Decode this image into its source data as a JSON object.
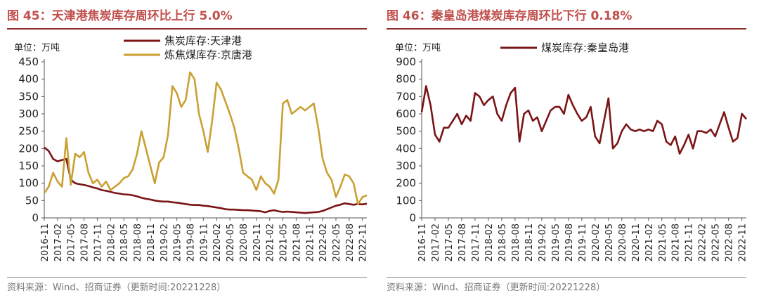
{
  "chart_data": [
    {
      "type": "line",
      "title": "图 45：天津港焦炭库存周环比上行 5.0%",
      "unit_label": "单位：万吨",
      "source": "资料来源：Wind、招商证券（更新时间:20221228）",
      "ylim": [
        0,
        450
      ],
      "yticks": [
        0,
        50,
        100,
        150,
        200,
        250,
        300,
        350,
        400,
        450
      ],
      "x_tick_labels": [
        "2016-11",
        "2017-02",
        "2017-05",
        "2017-08",
        "2017-11",
        "2018-02",
        "2018-05",
        "2018-08",
        "2018-11",
        "2019-02",
        "2019-05",
        "2019-08",
        "2019-11",
        "2020-02",
        "2020-05",
        "2020-08",
        "2020-11",
        "2021-02",
        "2021-05",
        "2021-08",
        "2021-11",
        "2022-02",
        "2022-05",
        "2022-08",
        "2022-11"
      ],
      "x_start": "2016-11",
      "x_end": "2022-12",
      "legend_position": "top-center",
      "series": [
        {
          "name": "焦炭库存:天津港",
          "color": "#7b1416",
          "points": [
            [
              "2016-11",
              203
            ],
            [
              "2016-12",
              193
            ],
            [
              "2017-01",
              170
            ],
            [
              "2017-02",
              163
            ],
            [
              "2017-03",
              167
            ],
            [
              "2017-04",
              170
            ],
            [
              "2017-05",
              110
            ],
            [
              "2017-06",
              100
            ],
            [
              "2017-07",
              97
            ],
            [
              "2017-08",
              95
            ],
            [
              "2017-09",
              92
            ],
            [
              "2017-10",
              88
            ],
            [
              "2017-11",
              85
            ],
            [
              "2017-12",
              80
            ],
            [
              "2018-01",
              78
            ],
            [
              "2018-02",
              75
            ],
            [
              "2018-03",
              72
            ],
            [
              "2018-04",
              70
            ],
            [
              "2018-05",
              68
            ],
            [
              "2018-06",
              67
            ],
            [
              "2018-07",
              65
            ],
            [
              "2018-08",
              62
            ],
            [
              "2018-09",
              58
            ],
            [
              "2018-10",
              55
            ],
            [
              "2018-11",
              53
            ],
            [
              "2018-12",
              50
            ],
            [
              "2019-01",
              48
            ],
            [
              "2019-02",
              47
            ],
            [
              "2019-03",
              47
            ],
            [
              "2019-04",
              45
            ],
            [
              "2019-05",
              44
            ],
            [
              "2019-06",
              42
            ],
            [
              "2019-07",
              40
            ],
            [
              "2019-08",
              38
            ],
            [
              "2019-09",
              37
            ],
            [
              "2019-10",
              37
            ],
            [
              "2019-11",
              35
            ],
            [
              "2019-12",
              34
            ],
            [
              "2020-01",
              32
            ],
            [
              "2020-02",
              30
            ],
            [
              "2020-03",
              28
            ],
            [
              "2020-04",
              25
            ],
            [
              "2020-05",
              24
            ],
            [
              "2020-06",
              24
            ],
            [
              "2020-07",
              23
            ],
            [
              "2020-08",
              22
            ],
            [
              "2020-09",
              22
            ],
            [
              "2020-10",
              21
            ],
            [
              "2020-11",
              20
            ],
            [
              "2020-12",
              19
            ],
            [
              "2021-01",
              16
            ],
            [
              "2021-02",
              20
            ],
            [
              "2021-03",
              22
            ],
            [
              "2021-04",
              19
            ],
            [
              "2021-05",
              17
            ],
            [
              "2021-06",
              18
            ],
            [
              "2021-07",
              17
            ],
            [
              "2021-08",
              16
            ],
            [
              "2021-09",
              15
            ],
            [
              "2021-10",
              14
            ],
            [
              "2021-11",
              15
            ],
            [
              "2021-12",
              16
            ],
            [
              "2022-01",
              17
            ],
            [
              "2022-02",
              20
            ],
            [
              "2022-03",
              25
            ],
            [
              "2022-04",
              30
            ],
            [
              "2022-05",
              35
            ],
            [
              "2022-06",
              38
            ],
            [
              "2022-07",
              42
            ],
            [
              "2022-08",
              40
            ],
            [
              "2022-09",
              38
            ],
            [
              "2022-10",
              40
            ],
            [
              "2022-11",
              39
            ],
            [
              "2022-12",
              41
            ]
          ]
        },
        {
          "name": "炼焦煤库存:京唐港",
          "color": "#c9a032",
          "points": [
            [
              "2016-11",
              72
            ],
            [
              "2016-12",
              90
            ],
            [
              "2017-01",
              130
            ],
            [
              "2017-02",
              105
            ],
            [
              "2017-03",
              90
            ],
            [
              "2017-04",
              230
            ],
            [
              "2017-05",
              95
            ],
            [
              "2017-06",
              185
            ],
            [
              "2017-07",
              175
            ],
            [
              "2017-08",
              190
            ],
            [
              "2017-09",
              130
            ],
            [
              "2017-10",
              100
            ],
            [
              "2017-11",
              110
            ],
            [
              "2017-12",
              90
            ],
            [
              "2018-01",
              105
            ],
            [
              "2018-02",
              80
            ],
            [
              "2018-03",
              90
            ],
            [
              "2018-04",
              100
            ],
            [
              "2018-05",
              115
            ],
            [
              "2018-06",
              120
            ],
            [
              "2018-07",
              140
            ],
            [
              "2018-08",
              185
            ],
            [
              "2018-09",
              250
            ],
            [
              "2018-10",
              200
            ],
            [
              "2018-11",
              150
            ],
            [
              "2018-12",
              100
            ],
            [
              "2019-01",
              160
            ],
            [
              "2019-02",
              175
            ],
            [
              "2019-03",
              240
            ],
            [
              "2019-04",
              380
            ],
            [
              "2019-05",
              360
            ],
            [
              "2019-06",
              320
            ],
            [
              "2019-07",
              340
            ],
            [
              "2019-08",
              420
            ],
            [
              "2019-09",
              400
            ],
            [
              "2019-10",
              300
            ],
            [
              "2019-11",
              250
            ],
            [
              "2019-12",
              190
            ],
            [
              "2020-01",
              280
            ],
            [
              "2020-02",
              390
            ],
            [
              "2020-03",
              370
            ],
            [
              "2020-04",
              335
            ],
            [
              "2020-05",
              300
            ],
            [
              "2020-06",
              260
            ],
            [
              "2020-07",
              200
            ],
            [
              "2020-08",
              130
            ],
            [
              "2020-09",
              120
            ],
            [
              "2020-10",
              110
            ],
            [
              "2020-11",
              80
            ],
            [
              "2020-12",
              120
            ],
            [
              "2021-01",
              100
            ],
            [
              "2021-02",
              90
            ],
            [
              "2021-03",
              70
            ],
            [
              "2021-04",
              110
            ],
            [
              "2021-05",
              330
            ],
            [
              "2021-06",
              340
            ],
            [
              "2021-07",
              300
            ],
            [
              "2021-08",
              310
            ],
            [
              "2021-09",
              320
            ],
            [
              "2021-10",
              310
            ],
            [
              "2021-11",
              320
            ],
            [
              "2021-12",
              330
            ],
            [
              "2022-01",
              260
            ],
            [
              "2022-02",
              170
            ],
            [
              "2022-03",
              130
            ],
            [
              "2022-04",
              110
            ],
            [
              "2022-05",
              60
            ],
            [
              "2022-06",
              90
            ],
            [
              "2022-07",
              125
            ],
            [
              "2022-08",
              120
            ],
            [
              "2022-09",
              100
            ],
            [
              "2022-10",
              40
            ],
            [
              "2022-11",
              60
            ],
            [
              "2022-12",
              65
            ]
          ]
        }
      ]
    },
    {
      "type": "line",
      "title": "图 46：秦皇岛港煤炭库存周环比下行 0.18%",
      "unit_label": "单位：万吨",
      "source": "资料来源：Wind、招商证券（更新时间:20221228）",
      "ylim": [
        0,
        900
      ],
      "yticks": [
        0,
        100,
        200,
        300,
        400,
        500,
        600,
        700,
        800,
        900
      ],
      "x_tick_labels": [
        "2016-11",
        "2017-02",
        "2017-05",
        "2017-08",
        "2017-11",
        "2018-02",
        "2018-05",
        "2018-08",
        "2018-11",
        "2019-02",
        "2019-05",
        "2019-08",
        "2019-11",
        "2020-02",
        "2020-05",
        "2020-08",
        "2020-11",
        "2021-02",
        "2021-05",
        "2021-08",
        "2021-11",
        "2022-02",
        "2022-05",
        "2022-08",
        "2022-11"
      ],
      "x_start": "2016-11",
      "x_end": "2022-12",
      "legend_position": "top-center",
      "series": [
        {
          "name": "煤炭库存:秦皇岛港",
          "color": "#7b1416",
          "points": [
            [
              "2016-11",
              610
            ],
            [
              "2016-12",
              760
            ],
            [
              "2017-01",
              650
            ],
            [
              "2017-02",
              480
            ],
            [
              "2017-03",
              440
            ],
            [
              "2017-04",
              520
            ],
            [
              "2017-05",
              520
            ],
            [
              "2017-06",
              560
            ],
            [
              "2017-07",
              600
            ],
            [
              "2017-08",
              540
            ],
            [
              "2017-09",
              590
            ],
            [
              "2017-10",
              560
            ],
            [
              "2017-11",
              720
            ],
            [
              "2017-12",
              700
            ],
            [
              "2018-01",
              650
            ],
            [
              "2018-02",
              680
            ],
            [
              "2018-03",
              700
            ],
            [
              "2018-04",
              600
            ],
            [
              "2018-05",
              560
            ],
            [
              "2018-06",
              650
            ],
            [
              "2018-07",
              720
            ],
            [
              "2018-08",
              750
            ],
            [
              "2018-09",
              440
            ],
            [
              "2018-10",
              600
            ],
            [
              "2018-11",
              620
            ],
            [
              "2018-12",
              560
            ],
            [
              "2019-01",
              580
            ],
            [
              "2019-02",
              500
            ],
            [
              "2019-03",
              560
            ],
            [
              "2019-04",
              620
            ],
            [
              "2019-05",
              640
            ],
            [
              "2019-06",
              640
            ],
            [
              "2019-07",
              600
            ],
            [
              "2019-08",
              710
            ],
            [
              "2019-09",
              650
            ],
            [
              "2019-10",
              600
            ],
            [
              "2019-11",
              560
            ],
            [
              "2019-12",
              580
            ],
            [
              "2020-01",
              640
            ],
            [
              "2020-02",
              470
            ],
            [
              "2020-03",
              430
            ],
            [
              "2020-04",
              560
            ],
            [
              "2020-05",
              690
            ],
            [
              "2020-06",
              400
            ],
            [
              "2020-07",
              430
            ],
            [
              "2020-08",
              500
            ],
            [
              "2020-09",
              540
            ],
            [
              "2020-10",
              510
            ],
            [
              "2020-11",
              500
            ],
            [
              "2020-12",
              510
            ],
            [
              "2021-01",
              500
            ],
            [
              "2021-02",
              510
            ],
            [
              "2021-03",
              500
            ],
            [
              "2021-04",
              560
            ],
            [
              "2021-05",
              540
            ],
            [
              "2021-06",
              440
            ],
            [
              "2021-07",
              420
            ],
            [
              "2021-08",
              470
            ],
            [
              "2021-09",
              370
            ],
            [
              "2021-10",
              420
            ],
            [
              "2021-11",
              480
            ],
            [
              "2021-12",
              400
            ],
            [
              "2022-01",
              500
            ],
            [
              "2022-02",
              500
            ],
            [
              "2022-03",
              490
            ],
            [
              "2022-04",
              510
            ],
            [
              "2022-05",
              470
            ],
            [
              "2022-06",
              540
            ],
            [
              "2022-07",
              610
            ],
            [
              "2022-08",
              520
            ],
            [
              "2022-09",
              440
            ],
            [
              "2022-10",
              460
            ],
            [
              "2022-11",
              600
            ],
            [
              "2022-12",
              570
            ]
          ]
        }
      ]
    }
  ]
}
